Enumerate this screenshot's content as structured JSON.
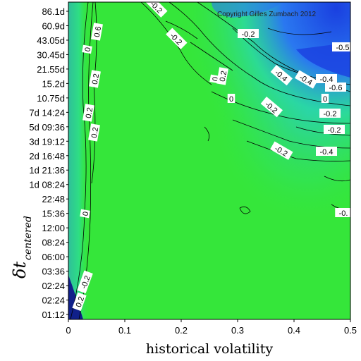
{
  "chart_data": {
    "type": "heatmap",
    "xlabel": "historical volatility",
    "ylabel_main": "δt",
    "ylabel_sub": "centered",
    "copyright": "Copyright Gilles Zumbach 2012",
    "xlim": [
      0,
      0.5
    ],
    "x_ticks": [
      "0",
      "0.1",
      "0.2",
      "0.3",
      "0.4",
      "0.5"
    ],
    "y_ticks": [
      "01:12",
      "02:24",
      "02:24",
      "03:36",
      "06:00",
      "08:24",
      "12:00",
      "15:36",
      "22:48",
      "1d 08:24",
      "1d 21:36",
      "2d 16:48",
      "3d 19:12",
      "5d 09:36",
      "7d 14:24",
      "10.75d",
      "15.2d",
      "21.55d",
      "30.45d",
      "43.05d",
      "60.9d",
      "86.1d"
    ],
    "colors": {
      "background_green": "#35e63a",
      "positive_light": "#2ee870",
      "neutral_teal": "#2ad8a8",
      "negative_blue": "#2a78f0",
      "strong_negative_blue": "#1a40e0",
      "dark_navy": "#10208a"
    },
    "contour_labels": [
      {
        "text": "0.2"
      },
      {
        "text": "-0.2"
      },
      {
        "text": "0.6"
      },
      {
        "text": "0"
      },
      {
        "text": "0.2"
      },
      {
        "text": "0.2"
      },
      {
        "text": "0"
      },
      {
        "text": "0"
      },
      {
        "text": "0.2"
      },
      {
        "text": "-0.4"
      },
      {
        "text": "-0.2"
      },
      {
        "text": "0"
      },
      {
        "text": "-0.2"
      },
      {
        "text": "-0.2"
      },
      {
        "text": "-0.2"
      },
      {
        "text": "-0.2"
      },
      {
        "text": "-0.4"
      },
      {
        "text": "0.2"
      },
      {
        "text": "-0.4"
      },
      {
        "text": "-0.6"
      },
      {
        "text": "-0.5"
      },
      {
        "text": "0"
      },
      {
        "text": "-0.2"
      },
      {
        "text": "-0.2"
      },
      {
        "text": "-0.4"
      },
      {
        "text": "-0."
      }
    ]
  }
}
